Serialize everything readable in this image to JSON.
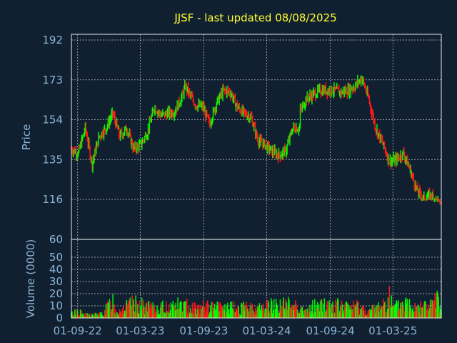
{
  "chart_data": {
    "type": "candlestick",
    "title": "JJSF - last updated 08/08/2025",
    "colors": {
      "background": "#102030",
      "up": "#00ff00",
      "down": "#ff1a1a",
      "text": "#8cb4d8",
      "title": "#ffff33",
      "grid": "#ffffff"
    },
    "price_panel": {
      "ylabel": "Price",
      "yticks": [
        192,
        173,
        154,
        135,
        116,
        60
      ],
      "ylim": [
        60,
        192
      ],
      "grid": true
    },
    "volume_panel": {
      "ylabel": "Volume (0000)",
      "yticks": [
        50,
        40,
        30,
        20,
        10,
        0
      ],
      "ylim": [
        0,
        60
      ],
      "grid": true
    },
    "xticks": [
      "01-09-22",
      "01-03-23",
      "01-09-23",
      "01-03-24",
      "01-09-24",
      "01-03-25"
    ],
    "x_range_days": [
      0,
      1070
    ],
    "xtick_days": [
      18,
      199,
      383,
      565,
      749,
      930
    ],
    "price_series": {
      "name": "JJSF",
      "x_days": [
        0,
        20,
        40,
        60,
        80,
        100,
        120,
        140,
        160,
        180,
        200,
        220,
        240,
        260,
        280,
        300,
        320,
        330,
        345,
        360,
        380,
        400,
        420,
        440,
        460,
        480,
        500,
        520,
        540,
        560,
        580,
        600,
        620,
        640,
        660,
        662,
        680,
        700,
        720,
        740,
        760,
        780,
        800,
        820,
        840,
        860,
        880,
        900,
        920,
        940,
        960,
        980,
        1000,
        1020,
        1040,
        1060,
        1070
      ],
      "close": [
        140,
        138,
        150,
        133,
        146,
        150,
        157,
        146,
        150,
        140,
        142,
        148,
        160,
        156,
        157,
        158,
        165,
        170,
        165,
        161,
        160,
        152,
        162,
        168,
        167,
        160,
        157,
        155,
        144,
        142,
        139,
        137,
        139,
        150,
        150,
        158,
        164,
        166,
        168,
        168,
        168,
        167,
        168,
        170,
        174,
        164,
        150,
        143,
        134,
        135,
        138,
        130,
        120,
        116,
        118,
        115,
        109
      ]
    },
    "volume_series": {
      "name": "Volume",
      "x_days": [
        0,
        15,
        40,
        90,
        120,
        130,
        180,
        240,
        310,
        360,
        480,
        550,
        560,
        600,
        650,
        680,
        700,
        740,
        800,
        830,
        860,
        910,
        920,
        930,
        960,
        1000,
        1040,
        1060,
        1070
      ],
      "values": [
        9,
        17,
        7,
        9,
        41,
        14,
        33,
        21,
        30,
        25,
        23,
        22,
        28,
        30,
        31,
        12,
        28,
        30,
        25,
        27,
        14,
        36,
        52,
        21,
        34,
        30,
        28,
        40,
        11
      ]
    }
  }
}
